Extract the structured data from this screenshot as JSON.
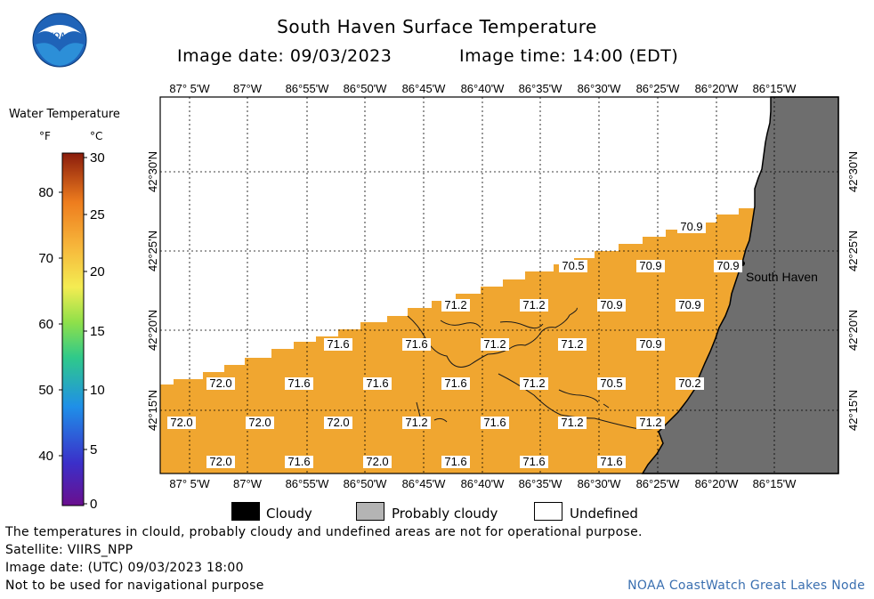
{
  "title": "South Haven Surface Temperature",
  "image_date_label": "Image date: 09/03/2023",
  "image_time_label": "Image time: 14:00 (EDT)",
  "logo_text": "NOAA",
  "legend": {
    "title": "Water Temperature",
    "unit_f": "°F",
    "unit_c": "°C",
    "f_ticks": [
      "80",
      "70",
      "60",
      "50",
      "40"
    ],
    "c_ticks": [
      "30",
      "25",
      "20",
      "15",
      "10",
      "5",
      "0"
    ]
  },
  "map": {
    "lon_labels": [
      "87° 5'W",
      "87°W",
      "86°55'W",
      "86°50'W",
      "86°45'W",
      "86°40'W",
      "86°35'W",
      "86°30'W",
      "86°25'W",
      "86°20'W",
      "86°15'W"
    ],
    "lat_labels": [
      "42°30'N",
      "42°25'N",
      "42°20'N",
      "42°15'N"
    ],
    "place_label": "South Haven",
    "temps": [
      {
        "v": "70.9"
      },
      {
        "v": "70.5"
      },
      {
        "v": "70.9"
      },
      {
        "v": "70.9"
      },
      {
        "v": "71.2"
      },
      {
        "v": "71.2"
      },
      {
        "v": "70.9"
      },
      {
        "v": "70.9"
      },
      {
        "v": "71.6"
      },
      {
        "v": "71.6"
      },
      {
        "v": "71.2"
      },
      {
        "v": "71.2"
      },
      {
        "v": "70.9"
      },
      {
        "v": "72.0"
      },
      {
        "v": "71.6"
      },
      {
        "v": "71.6"
      },
      {
        "v": "71.6"
      },
      {
        "v": "71.2"
      },
      {
        "v": "70.5"
      },
      {
        "v": "70.2"
      },
      {
        "v": "72.0"
      },
      {
        "v": "72.0"
      },
      {
        "v": "72.0"
      },
      {
        "v": "71.2"
      },
      {
        "v": "71.6"
      },
      {
        "v": "71.2"
      },
      {
        "v": "71.2"
      },
      {
        "v": "72.0"
      },
      {
        "v": "71.6"
      },
      {
        "v": "72.0"
      },
      {
        "v": "71.6"
      },
      {
        "v": "71.6"
      },
      {
        "v": "71.6"
      }
    ],
    "land_color": "#6e6e6e",
    "water_color": "#f0a630"
  },
  "key": {
    "cloudy": "Cloudy",
    "probably_cloudy": "Probably cloudy",
    "undefined": "Undefined"
  },
  "footer": {
    "line1": "The temperatures in clould, probably cloudy and undefined areas are not for operational purpose.",
    "line2": "Satellite: VIIRS_NPP",
    "line3": "Image date: (UTC) 09/03/2023  18:00",
    "line4": "Not to be used for navigational purpose",
    "credit": "NOAA CoastWatch Great Lakes Node"
  }
}
